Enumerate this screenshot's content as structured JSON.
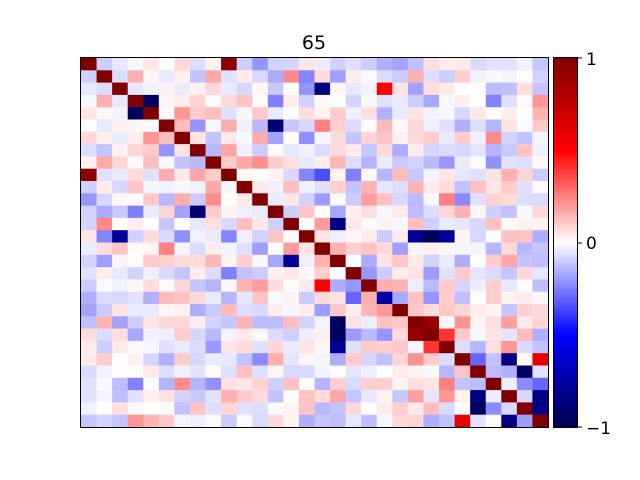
{
  "chart_data": {
    "type": "heatmap",
    "title": "65",
    "xlabel": "",
    "ylabel": "",
    "rows": 30,
    "cols": 30,
    "vmin": -1,
    "vmax": 1,
    "colormap": [
      "#00004d",
      "#0000ff",
      "#ffffff",
      "#ff0000",
      "#800000"
    ],
    "colorbar": {
      "ticks": [
        1,
        0,
        -1
      ],
      "tick_labels": [
        "1",
        "0",
        "−1"
      ]
    },
    "strong_cells": [
      {
        "row": 0,
        "col": 9,
        "value": 0.95
      },
      {
        "row": 9,
        "col": 0,
        "value": 0.95
      },
      {
        "row": 3,
        "col": 4,
        "value": -0.95
      },
      {
        "row": 4,
        "col": 3,
        "value": -0.95
      },
      {
        "row": 5,
        "col": 12,
        "value": -0.9
      },
      {
        "row": 2,
        "col": 15,
        "value": -0.85
      },
      {
        "row": 9,
        "col": 15,
        "value": -0.35
      },
      {
        "row": 12,
        "col": 7,
        "value": -0.9
      },
      {
        "row": 13,
        "col": 16,
        "value": -0.85
      },
      {
        "row": 14,
        "col": 2,
        "value": -0.8
      },
      {
        "row": 14,
        "col": 21,
        "value": -0.8
      },
      {
        "row": 14,
        "col": 22,
        "value": -0.95
      },
      {
        "row": 14,
        "col": 23,
        "value": -0.8
      },
      {
        "row": 16,
        "col": 13,
        "value": -0.8
      },
      {
        "row": 19,
        "col": 19,
        "value": -0.75
      },
      {
        "row": 2,
        "col": 19,
        "value": 0.5
      },
      {
        "row": 18,
        "col": 15,
        "value": 0.5
      },
      {
        "row": 21,
        "col": 16,
        "value": -0.95
      },
      {
        "row": 21,
        "col": 22,
        "value": 0.9
      },
      {
        "row": 22,
        "col": 16,
        "value": -0.95
      },
      {
        "row": 22,
        "col": 21,
        "value": 0.9
      },
      {
        "row": 22,
        "col": 23,
        "value": 0.4
      },
      {
        "row": 23,
        "col": 16,
        "value": -0.8
      },
      {
        "row": 23,
        "col": 22,
        "value": 0.4
      },
      {
        "row": 24,
        "col": 27,
        "value": -0.85
      },
      {
        "row": 24,
        "col": 29,
        "value": 0.6
      },
      {
        "row": 25,
        "col": 28,
        "value": -0.95
      },
      {
        "row": 26,
        "col": 29,
        "value": -0.3
      },
      {
        "row": 27,
        "col": 25,
        "value": -0.85
      },
      {
        "row": 27,
        "col": 29,
        "value": -0.85
      },
      {
        "row": 28,
        "col": 25,
        "value": -0.95
      },
      {
        "row": 29,
        "col": 24,
        "value": 0.6
      },
      {
        "row": 29,
        "col": 27,
        "value": -0.85
      },
      {
        "row": 28,
        "col": 29,
        "value": -0.85
      },
      {
        "row": 19,
        "col": 17,
        "value": -0.3
      },
      {
        "row": 20,
        "col": 19,
        "value": 0.2
      },
      {
        "row": 24,
        "col": 25,
        "value": -0.3
      },
      {
        "row": 26,
        "col": 23,
        "value": 0.25
      },
      {
        "row": 11,
        "col": 23,
        "value": 0.25
      }
    ],
    "background_seed": 65,
    "background_amplitude": 0.3
  }
}
